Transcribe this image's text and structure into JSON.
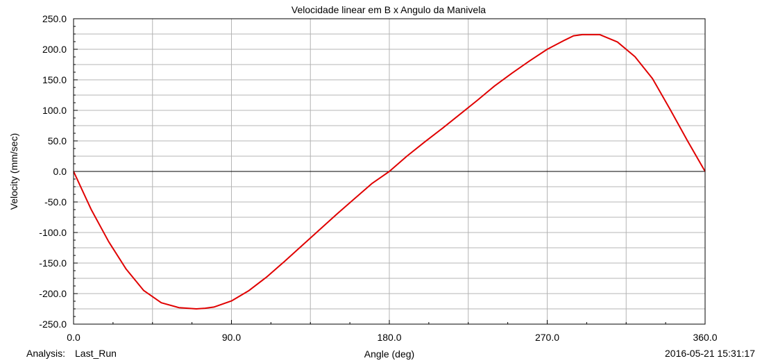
{
  "chart_data": {
    "type": "line",
    "title": "Velocidade linear em B x Angulo da Manivela",
    "xlabel": "Angle (deg)",
    "ylabel": "Velocity (mm/sec)",
    "xlim": [
      0,
      360
    ],
    "ylim": [
      -250,
      250
    ],
    "x_ticks": [
      "0.0",
      "90.0",
      "180.0",
      "270.0",
      "360.0"
    ],
    "y_ticks": [
      "250.0",
      "200.0",
      "150.0",
      "100.0",
      "50.0",
      "0.0",
      "-50.0",
      "-100.0",
      "-150.0",
      "-200.0",
      "-250.0"
    ],
    "grid": true,
    "series": [
      {
        "color": "#e00000",
        "x": [
          0,
          10,
          20,
          30,
          40,
          50,
          60,
          70,
          75,
          80,
          90,
          100,
          110,
          120,
          130,
          140,
          150,
          160,
          170,
          180,
          190,
          200,
          210,
          220,
          230,
          240,
          250,
          260,
          270,
          280,
          285,
          290,
          300,
          310,
          320,
          330,
          340,
          350,
          360
        ],
        "y": [
          0,
          -62,
          -115,
          -160,
          -195,
          -215,
          -223,
          -225,
          -224,
          -222,
          -212,
          -195,
          -173,
          -148,
          -122,
          -96,
          -70,
          -45,
          -20,
          0,
          25,
          48,
          70,
          93,
          116,
          140,
          161,
          181,
          200,
          215,
          222,
          224,
          224,
          212,
          188,
          152,
          102,
          50,
          0
        ]
      }
    ]
  },
  "footer": {
    "analysis_label": "Analysis:",
    "analysis_name": "Last_Run",
    "timestamp": "2016-05-21 15:31:17"
  }
}
